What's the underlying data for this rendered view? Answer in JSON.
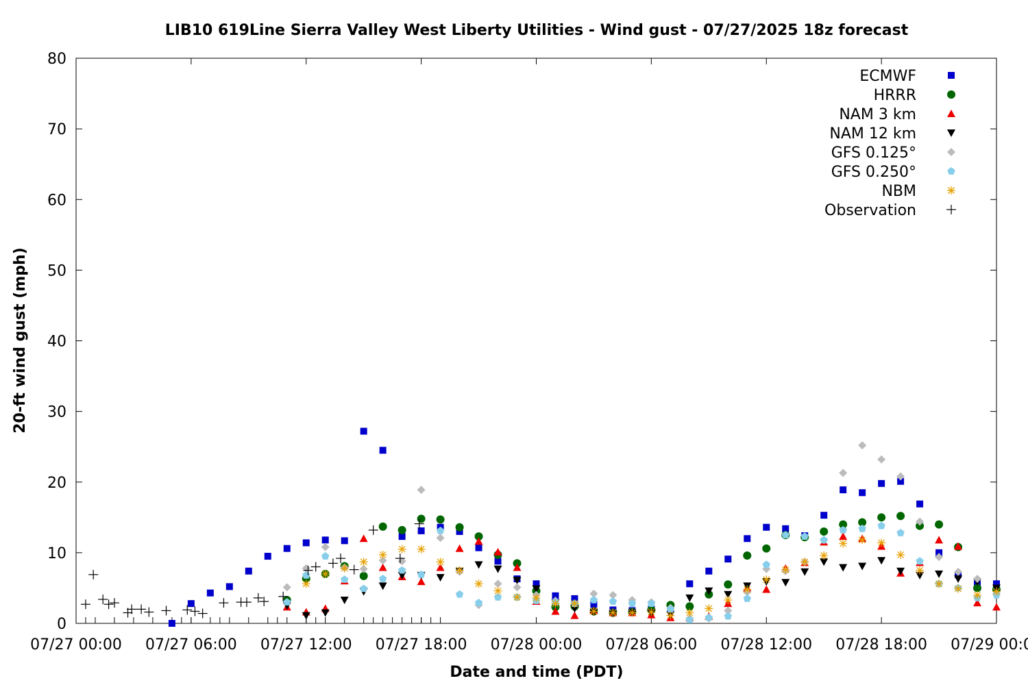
{
  "chart_data": {
    "type": "scatter",
    "title": "LIB10 619Line Sierra Valley West Liberty Utilities - Wind gust - 07/27/2025 18z forecast",
    "xlabel": "Date and time (PDT)",
    "ylabel": "20-ft wind gust (mph)",
    "xlim_hours": [
      0,
      48
    ],
    "ylim": [
      0,
      80
    ],
    "yticks": [
      0,
      10,
      20,
      30,
      40,
      50,
      60,
      70,
      80
    ],
    "xticks": [
      {
        "hour": 0,
        "label": "07/27 00:00"
      },
      {
        "hour": 6,
        "label": "07/27 06:00"
      },
      {
        "hour": 12,
        "label": "07/27 12:00"
      },
      {
        "hour": 18,
        "label": "07/27 18:00"
      },
      {
        "hour": 24,
        "label": "07/28 00:00"
      },
      {
        "hour": 30,
        "label": "07/28 06:00"
      },
      {
        "hour": 36,
        "label": "07/28 12:00"
      },
      {
        "hour": 42,
        "label": "07/28 18:00"
      },
      {
        "hour": 48,
        "label": "07/29 00:00"
      }
    ],
    "grid": false,
    "legend_position": "top-right",
    "series": [
      {
        "name": "ECMWF",
        "marker": "square",
        "color": "#0000cc",
        "x": [
          5,
          6,
          7,
          8,
          9,
          10,
          11,
          12,
          13,
          14,
          15,
          16,
          17,
          18,
          19,
          20,
          21,
          22,
          23,
          24,
          25,
          26,
          27,
          28,
          29,
          30,
          31,
          32,
          33,
          34,
          35,
          36,
          37,
          38,
          39,
          40,
          41,
          42,
          43,
          44,
          45,
          46,
          47,
          48
        ],
        "y": [
          0,
          2.8,
          4.3,
          5.2,
          7.4,
          9.5,
          10.6,
          11.4,
          11.8,
          11.7,
          27.2,
          24.5,
          12.3,
          13.1,
          13.6,
          13.0,
          10.7,
          8.8,
          6.3,
          5.6,
          3.9,
          3.5,
          2.7,
          1.9,
          1.8,
          2.0,
          2.2,
          5.6,
          7.4,
          9.1,
          12.0,
          13.6,
          13.4,
          12.4,
          15.3,
          18.9,
          18.5,
          19.8,
          20.1,
          16.9,
          10.0,
          6.9,
          5.8,
          5.6
        ]
      },
      {
        "name": "HRRR",
        "marker": "circle",
        "color": "#006600",
        "x": [
          11,
          12,
          13,
          14,
          15,
          16,
          17,
          18,
          19,
          20,
          21,
          22,
          23,
          24,
          25,
          26,
          27,
          28,
          29,
          30,
          31,
          32,
          33,
          34,
          35,
          36,
          37,
          38,
          39,
          40,
          41,
          42,
          43,
          44,
          45,
          46,
          47,
          48
        ],
        "y": [
          3.3,
          6.3,
          7.0,
          8.1,
          6.7,
          13.7,
          13.2,
          14.8,
          14.7,
          13.6,
          12.3,
          9.7,
          8.5,
          4.6,
          2.3,
          2.4,
          1.7,
          1.5,
          1.6,
          1.9,
          2.6,
          2.4,
          4.1,
          5.5,
          9.6,
          10.6,
          12.5,
          12.2,
          13.0,
          14.0,
          14.3,
          15.0,
          15.2,
          13.8,
          14.0,
          10.8,
          5.0,
          4.8
        ]
      },
      {
        "name": "NAM 3 km",
        "marker": "triangle-up",
        "color": "#ee0000",
        "x": [
          11,
          12,
          13,
          14,
          15,
          16,
          17,
          18,
          19,
          20,
          21,
          22,
          23,
          24,
          25,
          26,
          27,
          28,
          29,
          30,
          31,
          32,
          33,
          34,
          35,
          36,
          37,
          38,
          39,
          40,
          41,
          42,
          43,
          44,
          45,
          46,
          47,
          48
        ],
        "y": [
          2.3,
          1.6,
          2.1,
          6.0,
          12.0,
          7.9,
          6.6,
          5.9,
          7.9,
          10.6,
          11.6,
          10.1,
          7.9,
          3.1,
          1.7,
          1.1,
          1.8,
          1.5,
          1.5,
          1.2,
          0.8,
          0.8,
          1.0,
          2.8,
          5.0,
          4.8,
          7.8,
          8.6,
          11.5,
          12.3,
          12.0,
          10.9,
          7.1,
          8.6,
          11.8,
          10.9,
          2.9,
          2.3
        ]
      },
      {
        "name": "NAM 12 km",
        "marker": "triangle-down",
        "color": "#000000",
        "x": [
          11,
          12,
          13,
          14,
          15,
          16,
          17,
          18,
          19,
          20,
          21,
          22,
          23,
          24,
          25,
          26,
          27,
          28,
          29,
          30,
          31,
          32,
          33,
          34,
          35,
          36,
          37,
          38,
          39,
          40,
          41,
          42,
          43,
          44,
          45,
          46,
          47,
          48
        ],
        "y": [
          2.5,
          1.1,
          1.5,
          3.3,
          4.5,
          5.3,
          6.8,
          6.8,
          6.5,
          7.4,
          8.3,
          7.7,
          6.1,
          4.9,
          2.9,
          2.1,
          1.6,
          1.4,
          1.5,
          1.5,
          1.2,
          3.6,
          4.6,
          4.1,
          5.3,
          5.9,
          5.8,
          7.3,
          8.7,
          7.9,
          8.1,
          8.9,
          7.4,
          6.8,
          7.0,
          6.3,
          5.9,
          5.0
        ]
      },
      {
        "name": "GFS 0.125°",
        "marker": "diamond",
        "color": "#bbbbbb",
        "x": [
          11,
          12,
          13,
          14,
          15,
          16,
          17,
          18,
          19,
          20,
          21,
          22,
          23,
          24,
          25,
          26,
          27,
          28,
          29,
          30,
          31,
          32,
          33,
          34,
          35,
          36,
          37,
          38,
          39,
          40,
          41,
          42,
          43,
          44,
          45,
          46,
          47,
          48
        ],
        "y": [
          5.1,
          7.8,
          10.8,
          7.9,
          7.7,
          8.9,
          8.8,
          18.9,
          12.1,
          7.3,
          2.6,
          5.6,
          5.1,
          4.0,
          3.2,
          2.8,
          4.2,
          4.0,
          3.3,
          3.0,
          2.2,
          0.7,
          0.7,
          1.8,
          4.4,
          7.7,
          7.4,
          8.7,
          11.8,
          21.3,
          25.2,
          23.2,
          20.8,
          14.4,
          9.4,
          7.3,
          6.3,
          4.2
        ]
      },
      {
        "name": "GFS 0.250°",
        "marker": "pentagon",
        "color": "#87ceeb",
        "x": [
          11,
          12,
          13,
          14,
          15,
          16,
          17,
          18,
          19,
          20,
          21,
          22,
          23,
          24,
          25,
          26,
          27,
          28,
          29,
          30,
          31,
          32,
          33,
          34,
          35,
          36,
          37,
          38,
          39,
          40,
          41,
          42,
          43,
          44,
          45,
          46,
          47,
          48
        ],
        "y": [
          3.0,
          6.8,
          9.5,
          6.2,
          4.9,
          6.3,
          7.5,
          6.9,
          13.1,
          4.1,
          2.9,
          3.7,
          3.7,
          3.2,
          3.0,
          2.8,
          3.3,
          3.1,
          2.8,
          2.8,
          2.0,
          0.5,
          0.8,
          1.0,
          3.5,
          8.3,
          12.5,
          12.3,
          11.8,
          13.2,
          13.4,
          13.8,
          12.8,
          8.8,
          5.6,
          5.0,
          3.6,
          4.0
        ]
      },
      {
        "name": "NBM",
        "marker": "star",
        "color": "#e8a000",
        "x": [
          12,
          13,
          14,
          15,
          16,
          17,
          18,
          19,
          20,
          21,
          22,
          23,
          24,
          25,
          26,
          27,
          28,
          29,
          30,
          31,
          32,
          33,
          34,
          35,
          36,
          37,
          38,
          39,
          40,
          41,
          42,
          43,
          44,
          45,
          46,
          47,
          48
        ],
        "y": [
          5.6,
          7.0,
          7.8,
          8.7,
          9.7,
          10.5,
          10.5,
          8.7,
          7.5,
          5.6,
          4.6,
          3.7,
          3.6,
          2.8,
          2.8,
          1.7,
          1.5,
          1.5,
          1.6,
          1.1,
          1.5,
          2.1,
          3.3,
          4.8,
          6.2,
          7.6,
          8.7,
          9.6,
          11.3,
          11.8,
          11.4,
          9.7,
          7.5,
          5.6,
          4.9,
          4.0,
          4.5
        ]
      },
      {
        "name": "Observation",
        "marker": "plus",
        "color": "#000000",
        "x": [
          0.5,
          0.9,
          1.4,
          1.7,
          2.0,
          2.7,
          2.9,
          3.4,
          3.8,
          4.7,
          5.8,
          6.2,
          6.6,
          7.7,
          8.6,
          8.9,
          9.5,
          9.8,
          10.8,
          12.1,
          12.5,
          13.4,
          13.8,
          14.5,
          15.5,
          16.9,
          17.9
        ],
        "y": [
          2.7,
          6.9,
          3.4,
          2.7,
          2.9,
          1.5,
          2.0,
          2.0,
          1.6,
          1.8,
          1.9,
          1.7,
          1.4,
          2.9,
          3.0,
          3.0,
          3.6,
          3.1,
          3.8,
          7.5,
          8.0,
          8.5,
          9.2,
          7.6,
          13.2,
          9.2,
          14.1
        ]
      }
    ],
    "obs_ticks_hours": [
      0,
      0.5,
      1,
      2,
      3,
      4,
      5,
      5.5,
      6,
      7,
      7.5,
      8,
      9,
      10,
      10.5,
      11,
      12,
      12.5,
      13,
      14,
      15,
      15.5,
      16,
      16.5,
      17,
      17.5,
      18,
      18.5,
      19
    ]
  }
}
